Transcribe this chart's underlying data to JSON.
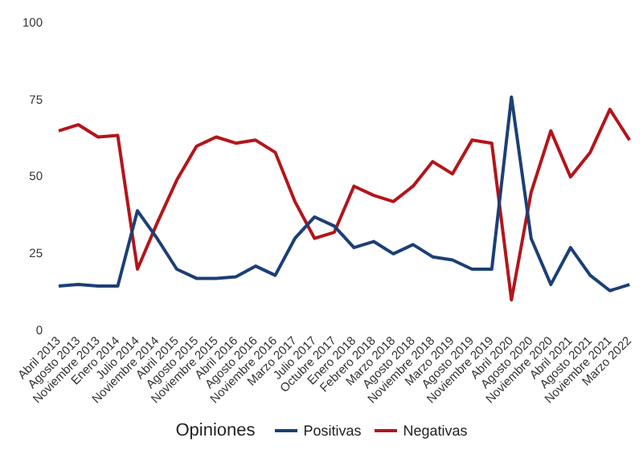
{
  "chart_data": {
    "type": "line",
    "legend_title": "Opiniones",
    "legend": "bottom",
    "grid": false,
    "marker": "none",
    "line_style": "solid",
    "categories": [
      "Abril 2013",
      "Agosto 2013",
      "Noviembre 2013",
      "Enero 2014",
      "Julio 2014",
      "Noviembre 2014",
      "Abril 2015",
      "Agosto 2015",
      "Noviembre 2015",
      "Abril 2016",
      "Agosto 2016",
      "Noviembre 2016",
      "Marzo 2017",
      "Julio 2017",
      "Octubre 2017",
      "Enero 2018",
      "Febrero 2018",
      "Marzo 2018",
      "Agosto 2018",
      "Noviembre 2018",
      "Marzo 2019",
      "Agosto 2019",
      "Noviembre 2019",
      "Abril 2020",
      "Agosto 2020",
      "Noviembre 2020",
      "Abril 2021",
      "Agosto 2021",
      "Noviembre 2021",
      "Marzo 2022"
    ],
    "ylim": [
      0,
      100
    ],
    "yticks": [
      0,
      25,
      50,
      75,
      100
    ],
    "series": [
      {
        "name": "Positivas",
        "color": "#1c3f75",
        "values": [
          14.5,
          15,
          14.5,
          14.5,
          39,
          30,
          20,
          17,
          17,
          17.5,
          21,
          18,
          30,
          37,
          34,
          27,
          29,
          25,
          28,
          24,
          23,
          20,
          20,
          76,
          30,
          15,
          27,
          18,
          13,
          15
        ]
      },
      {
        "name": "Negativas",
        "color": "#b3151b",
        "values": [
          65,
          67,
          63,
          63.5,
          20,
          35,
          49,
          60,
          63,
          61,
          62,
          58,
          42,
          30,
          32,
          47,
          44,
          42,
          47,
          55,
          51,
          62,
          61,
          10,
          45,
          65,
          50,
          58,
          72,
          62
        ]
      }
    ]
  }
}
